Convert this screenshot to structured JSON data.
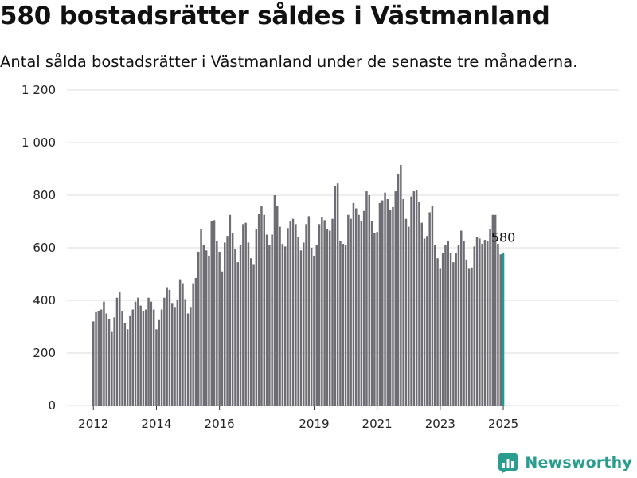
{
  "header": {
    "title": "580 bostadsrätter såldes i Västmanland",
    "subtitle": "Antal sålda bostadsrätter i Västmanland under de senaste tre månaderna."
  },
  "branding": {
    "name": "Newsworthy",
    "icon": "newsworthy-logo-icon"
  },
  "colors": {
    "bar": "#6e6d73",
    "highlight": "#1f9a95",
    "grid": "#dddddd"
  },
  "chart_data": {
    "type": "bar",
    "title": "580 bostadsrätter såldes i Västmanland",
    "subtitle": "Antal sålda bostadsrätter i Västmanland under de senaste tre månaderna.",
    "xlabel": "",
    "ylabel": "",
    "ylim": [
      0,
      1200
    ],
    "yticks": [
      0,
      200,
      400,
      600,
      800,
      1000,
      1200
    ],
    "ytick_labels": [
      "0",
      "200",
      "400",
      "600",
      "800",
      "1 000",
      "1 200"
    ],
    "xticks": [
      "2012",
      "2014",
      "2016",
      "2019",
      "2021",
      "2023",
      "2025"
    ],
    "xtick_month_index": [
      0,
      24,
      48,
      84,
      108,
      132,
      156
    ],
    "start_month": "2012-01",
    "end_month": "2025-01",
    "highlight_label": "580",
    "grid": true,
    "legend": "none",
    "values": [
      320,
      355,
      360,
      365,
      395,
      350,
      330,
      280,
      335,
      410,
      430,
      360,
      315,
      290,
      340,
      365,
      395,
      410,
      380,
      360,
      365,
      410,
      395,
      365,
      290,
      325,
      365,
      410,
      450,
      440,
      390,
      375,
      400,
      480,
      465,
      405,
      350,
      375,
      465,
      485,
      585,
      670,
      610,
      590,
      570,
      700,
      705,
      625,
      585,
      510,
      620,
      645,
      725,
      655,
      595,
      545,
      610,
      690,
      695,
      620,
      560,
      535,
      670,
      730,
      760,
      725,
      650,
      610,
      650,
      800,
      760,
      680,
      615,
      605,
      675,
      700,
      710,
      690,
      640,
      590,
      620,
      690,
      720,
      600,
      570,
      610,
      690,
      715,
      705,
      670,
      665,
      710,
      835,
      845,
      625,
      615,
      610,
      725,
      710,
      770,
      750,
      725,
      700,
      740,
      815,
      800,
      700,
      655,
      660,
      770,
      780,
      810,
      785,
      745,
      755,
      815,
      880,
      915,
      785,
      710,
      680,
      795,
      815,
      820,
      775,
      695,
      635,
      645,
      735,
      760,
      610,
      560,
      520,
      580,
      610,
      625,
      580,
      545,
      580,
      610,
      665,
      625,
      555,
      520,
      525,
      605,
      640,
      635,
      615,
      630,
      625,
      670,
      725,
      725,
      615,
      575,
      580
    ]
  }
}
